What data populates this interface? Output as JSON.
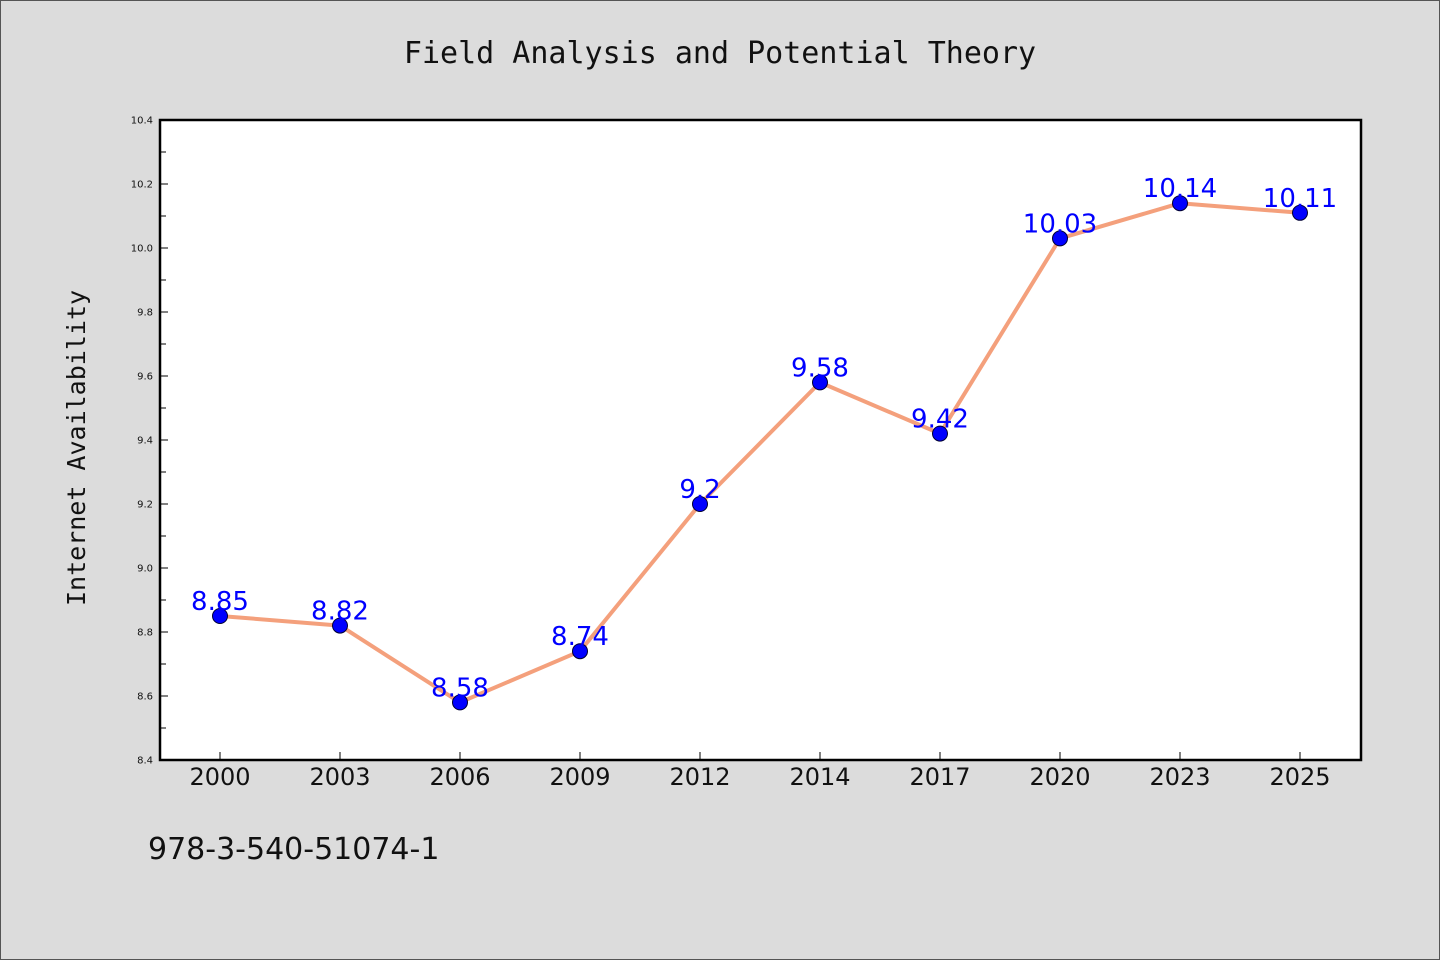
{
  "chart_data": {
    "type": "line",
    "title": "Field Analysis and Potential Theory",
    "xlabel": "",
    "ylabel": "Internet Availability",
    "categories": [
      "2000",
      "2003",
      "2006",
      "2009",
      "2012",
      "2014",
      "2017",
      "2020",
      "2023",
      "2025"
    ],
    "series": [
      {
        "values": [
          8.85,
          8.82,
          8.58,
          8.74,
          9.2,
          9.58,
          9.42,
          10.03,
          10.14,
          10.11
        ],
        "data_labels": [
          "8.85",
          "8.82",
          "8.58",
          "8.74",
          "9.2",
          "9.58",
          "9.42",
          "10.03",
          "10.14",
          "10.11"
        ],
        "line_color": "#f4a07c",
        "marker_color": "#0000ff",
        "label_color": "#0000ff"
      }
    ],
    "ylim": [
      8.4,
      10.4
    ],
    "yticks": [
      "8.4",
      "8.6",
      "8.8",
      "9.0",
      "9.2",
      "9.4",
      "9.6",
      "9.8",
      "10.0",
      "10.2",
      "10.4"
    ],
    "grid": false,
    "legend": "none"
  },
  "footer": {
    "isbn": "978-3-540-51074-1"
  },
  "colors": {
    "background": "#dcdcdc",
    "plot_background": "#ffffff"
  }
}
